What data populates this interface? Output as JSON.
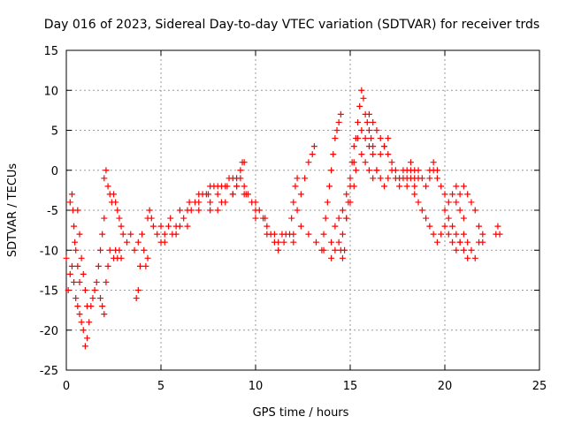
{
  "chart_data": {
    "type": "scatter",
    "title": "Day 016 of 2023, Sidereal Day-to-day VTEC variation (SDTVAR) for receiver trds",
    "xlabel": "GPS time / hours",
    "ylabel": "SDTVAR / TECUs",
    "xlim": [
      0,
      25
    ],
    "ylim": [
      -25,
      15
    ],
    "xticks": [
      0,
      5,
      10,
      15,
      20,
      25
    ],
    "yticks": [
      -25,
      -20,
      -15,
      -10,
      -5,
      0,
      5,
      10,
      15
    ],
    "grid": true,
    "marker": "plus",
    "color": "#ff0000",
    "series": [
      {
        "name": "SDTVAR",
        "points": [
          [
            0.0,
            -11
          ],
          [
            0.1,
            -15
          ],
          [
            0.2,
            -13
          ],
          [
            0.3,
            -12
          ],
          [
            0.4,
            -14
          ],
          [
            0.5,
            -16
          ],
          [
            0.6,
            -17
          ],
          [
            0.7,
            -18
          ],
          [
            0.8,
            -19
          ],
          [
            0.9,
            -20
          ],
          [
            1.0,
            -22
          ],
          [
            1.1,
            -21
          ],
          [
            1.2,
            -19
          ],
          [
            1.3,
            -17
          ],
          [
            1.4,
            -16
          ],
          [
            1.5,
            -15
          ],
          [
            0.2,
            -4
          ],
          [
            0.3,
            -3
          ],
          [
            0.35,
            -5
          ],
          [
            0.4,
            -7
          ],
          [
            0.45,
            -9
          ],
          [
            0.5,
            -10
          ],
          [
            0.6,
            -12
          ],
          [
            0.7,
            -14
          ],
          [
            0.6,
            -5
          ],
          [
            0.7,
            -8
          ],
          [
            0.8,
            -11
          ],
          [
            0.9,
            -13
          ],
          [
            1.0,
            -15
          ],
          [
            1.1,
            -17
          ],
          [
            1.6,
            -14
          ],
          [
            1.7,
            -12
          ],
          [
            1.8,
            -10
          ],
          [
            1.9,
            -8
          ],
          [
            2.0,
            -6
          ],
          [
            1.8,
            -16
          ],
          [
            1.9,
            -17
          ],
          [
            2.0,
            -18
          ],
          [
            2.1,
            -14
          ],
          [
            2.2,
            -12
          ],
          [
            2.3,
            -10
          ],
          [
            2.0,
            -1
          ],
          [
            2.1,
            0
          ],
          [
            2.2,
            -2
          ],
          [
            2.3,
            -3
          ],
          [
            2.4,
            -4
          ],
          [
            2.5,
            -3
          ],
          [
            2.6,
            -4
          ],
          [
            2.7,
            -5
          ],
          [
            2.8,
            -6
          ],
          [
            2.9,
            -7
          ],
          [
            2.5,
            -11
          ],
          [
            2.6,
            -10
          ],
          [
            2.7,
            -11
          ],
          [
            2.8,
            -10
          ],
          [
            2.9,
            -11
          ],
          [
            3.0,
            -8
          ],
          [
            3.2,
            -9
          ],
          [
            3.4,
            -8
          ],
          [
            3.6,
            -10
          ],
          [
            3.8,
            -9
          ],
          [
            3.9,
            -12
          ],
          [
            3.8,
            -15
          ],
          [
            3.7,
            -16
          ],
          [
            4.0,
            -8
          ],
          [
            4.1,
            -10
          ],
          [
            4.2,
            -12
          ],
          [
            4.3,
            -11
          ],
          [
            4.3,
            -6
          ],
          [
            4.4,
            -5
          ],
          [
            4.5,
            -6
          ],
          [
            4.6,
            -7
          ],
          [
            4.8,
            -8
          ],
          [
            5.0,
            -9
          ],
          [
            5.2,
            -8
          ],
          [
            5.4,
            -7
          ],
          [
            5.6,
            -8
          ],
          [
            5.8,
            -7
          ],
          [
            6.0,
            -7
          ],
          [
            6.2,
            -6
          ],
          [
            6.4,
            -5
          ],
          [
            6.6,
            -5
          ],
          [
            6.8,
            -4
          ],
          [
            7.0,
            -3
          ],
          [
            7.2,
            -3
          ],
          [
            7.4,
            -3
          ],
          [
            7.6,
            -2
          ],
          [
            7.8,
            -2
          ],
          [
            8.0,
            -2
          ],
          [
            8.2,
            -2
          ],
          [
            8.4,
            -2
          ],
          [
            8.6,
            -1
          ],
          [
            8.8,
            -1
          ],
          [
            9.0,
            -1
          ],
          [
            9.2,
            -1
          ],
          [
            9.4,
            -2
          ],
          [
            9.6,
            -3
          ],
          [
            9.8,
            -4
          ],
          [
            10.0,
            -5
          ],
          [
            10.2,
            -5
          ],
          [
            10.4,
            -6
          ],
          [
            10.6,
            -7
          ],
          [
            10.8,
            -8
          ],
          [
            11.0,
            -9
          ],
          [
            11.2,
            -9
          ],
          [
            11.4,
            -8
          ],
          [
            11.6,
            -8
          ],
          [
            5.0,
            -7
          ],
          [
            5.5,
            -6
          ],
          [
            6.0,
            -5
          ],
          [
            6.5,
            -4
          ],
          [
            7.0,
            -4
          ],
          [
            7.5,
            -3
          ],
          [
            8.0,
            -3
          ],
          [
            8.5,
            -2
          ],
          [
            9.0,
            -2
          ],
          [
            9.5,
            -3
          ],
          [
            10.0,
            -4
          ],
          [
            10.5,
            -6
          ],
          [
            11.0,
            -8
          ],
          [
            11.5,
            -9
          ],
          [
            12.0,
            -9
          ],
          [
            5.2,
            -9
          ],
          [
            5.8,
            -8
          ],
          [
            6.4,
            -7
          ],
          [
            7.0,
            -5
          ],
          [
            7.6,
            -4
          ],
          [
            8.2,
            -4
          ],
          [
            8.8,
            -3
          ],
          [
            9.4,
            -3
          ],
          [
            10.0,
            -6
          ],
          [
            10.6,
            -8
          ],
          [
            11.2,
            -10
          ],
          [
            7.6,
            -5
          ],
          [
            8.0,
            -5
          ],
          [
            8.4,
            -4
          ],
          [
            8.8,
            -3
          ],
          [
            9.0,
            -2
          ],
          [
            9.2,
            0
          ],
          [
            9.3,
            1
          ],
          [
            9.4,
            1
          ],
          [
            11.8,
            -8
          ],
          [
            11.9,
            -6
          ],
          [
            12.0,
            -4
          ],
          [
            12.1,
            -2
          ],
          [
            12.2,
            -1
          ],
          [
            12.2,
            -5
          ],
          [
            12.4,
            -3
          ],
          [
            12.6,
            -1
          ],
          [
            12.8,
            1
          ],
          [
            13.0,
            2
          ],
          [
            13.1,
            3
          ],
          [
            12.0,
            -8
          ],
          [
            12.4,
            -7
          ],
          [
            12.8,
            -8
          ],
          [
            13.2,
            -9
          ],
          [
            13.6,
            -10
          ],
          [
            14.0,
            -9
          ],
          [
            14.2,
            -7
          ],
          [
            14.4,
            -6
          ],
          [
            14.6,
            -5
          ],
          [
            14.8,
            -3
          ],
          [
            15.0,
            -1
          ],
          [
            15.2,
            1
          ],
          [
            13.5,
            -10
          ],
          [
            13.6,
            -8
          ],
          [
            13.7,
            -6
          ],
          [
            13.8,
            -4
          ],
          [
            13.9,
            -2
          ],
          [
            14.0,
            0
          ],
          [
            14.1,
            2
          ],
          [
            14.2,
            4
          ],
          [
            14.3,
            5
          ],
          [
            14.4,
            6
          ],
          [
            14.5,
            7
          ],
          [
            14.0,
            -11
          ],
          [
            14.2,
            -10
          ],
          [
            14.4,
            -9
          ],
          [
            14.6,
            -8
          ],
          [
            14.8,
            -6
          ],
          [
            15.0,
            -4
          ],
          [
            15.2,
            -2
          ],
          [
            15.3,
            0
          ],
          [
            14.5,
            -10
          ],
          [
            14.6,
            -11
          ],
          [
            14.7,
            -10
          ],
          [
            14.8,
            -6
          ],
          [
            14.9,
            -4
          ],
          [
            15.0,
            -2
          ],
          [
            15.1,
            1
          ],
          [
            15.2,
            3
          ],
          [
            15.4,
            4
          ],
          [
            15.6,
            5
          ],
          [
            15.8,
            4
          ],
          [
            16.0,
            3
          ],
          [
            16.2,
            2
          ],
          [
            16.4,
            0
          ],
          [
            16.6,
            -1
          ],
          [
            16.8,
            -2
          ],
          [
            17.0,
            -1
          ],
          [
            17.2,
            0
          ],
          [
            17.4,
            -1
          ],
          [
            17.6,
            -2
          ],
          [
            17.8,
            -1
          ],
          [
            18.0,
            -2
          ],
          [
            18.2,
            -1
          ],
          [
            18.4,
            -2
          ],
          [
            18.6,
            -1
          ],
          [
            15.3,
            4
          ],
          [
            15.4,
            6
          ],
          [
            15.5,
            8
          ],
          [
            15.6,
            10
          ],
          [
            15.7,
            9
          ],
          [
            15.8,
            7
          ],
          [
            15.9,
            6
          ],
          [
            16.0,
            5
          ],
          [
            16.1,
            4
          ],
          [
            16.2,
            3
          ],
          [
            15.6,
            2
          ],
          [
            15.8,
            1
          ],
          [
            16.0,
            0
          ],
          [
            16.2,
            -1
          ],
          [
            16.4,
            0
          ],
          [
            16.6,
            2
          ],
          [
            16.8,
            3
          ],
          [
            17.0,
            2
          ],
          [
            17.2,
            1
          ],
          [
            17.4,
            0
          ],
          [
            16.0,
            7
          ],
          [
            16.2,
            6
          ],
          [
            16.4,
            5
          ],
          [
            16.6,
            4
          ],
          [
            16.8,
            3
          ],
          [
            17.0,
            4
          ],
          [
            17.6,
            -1
          ],
          [
            17.8,
            0
          ],
          [
            18.0,
            -1
          ],
          [
            18.2,
            0
          ],
          [
            18.4,
            -1
          ],
          [
            18.6,
            0
          ],
          [
            18.8,
            -1
          ],
          [
            19.0,
            -2
          ],
          [
            19.2,
            -1
          ],
          [
            19.4,
            0
          ],
          [
            19.6,
            -1
          ],
          [
            19.8,
            -2
          ],
          [
            20.0,
            -3
          ],
          [
            20.2,
            -4
          ],
          [
            20.4,
            -3
          ],
          [
            20.6,
            -4
          ],
          [
            20.8,
            -5
          ],
          [
            21.0,
            -6
          ],
          [
            18.4,
            -3
          ],
          [
            18.6,
            -4
          ],
          [
            18.8,
            -5
          ],
          [
            19.0,
            -6
          ],
          [
            19.2,
            -7
          ],
          [
            19.4,
            -8
          ],
          [
            19.6,
            -9
          ],
          [
            19.8,
            -8
          ],
          [
            20.0,
            -7
          ],
          [
            20.2,
            -8
          ],
          [
            20.4,
            -9
          ],
          [
            20.6,
            -10
          ],
          [
            20.8,
            -9
          ],
          [
            21.0,
            -8
          ],
          [
            21.2,
            -9
          ],
          [
            21.4,
            -10
          ],
          [
            21.6,
            -11
          ],
          [
            21.8,
            -9
          ],
          [
            22.0,
            -8
          ],
          [
            18.0,
            0
          ],
          [
            18.2,
            1
          ],
          [
            18.4,
            0
          ],
          [
            19.2,
            0
          ],
          [
            19.4,
            1
          ],
          [
            19.6,
            0
          ],
          [
            20.0,
            -5
          ],
          [
            20.2,
            -6
          ],
          [
            20.4,
            -7
          ],
          [
            20.6,
            -8
          ],
          [
            20.8,
            -9
          ],
          [
            21.0,
            -10
          ],
          [
            21.2,
            -11
          ],
          [
            20.6,
            -2
          ],
          [
            20.8,
            -3
          ],
          [
            21.0,
            -2
          ],
          [
            21.2,
            -3
          ],
          [
            21.4,
            -4
          ],
          [
            21.6,
            -5
          ],
          [
            21.8,
            -7
          ],
          [
            22.0,
            -9
          ],
          [
            22.7,
            -8
          ],
          [
            22.8,
            -7
          ],
          [
            22.9,
            -8
          ]
        ]
      }
    ]
  }
}
